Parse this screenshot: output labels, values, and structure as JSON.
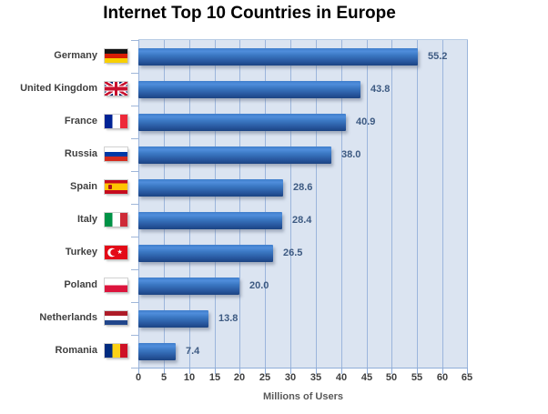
{
  "title": "Internet Top 10 Countries in Europe",
  "chart_data": {
    "type": "bar",
    "orientation": "horizontal",
    "title": "Internet Top 10 Countries in Europe",
    "xlabel": "Millions of Users",
    "xlim": [
      0,
      65
    ],
    "xticks": [
      0,
      5,
      10,
      15,
      20,
      25,
      30,
      35,
      40,
      45,
      50,
      55,
      60,
      65
    ],
    "grid": "vertical",
    "legend": "none",
    "categories": [
      "Germany",
      "United Kingdom",
      "France",
      "Russia",
      "Spain",
      "Italy",
      "Turkey",
      "Poland",
      "Netherlands",
      "Romania"
    ],
    "values": [
      55.2,
      43.8,
      40.9,
      38.0,
      28.6,
      28.4,
      26.5,
      20.0,
      13.8,
      7.4
    ],
    "value_labels": [
      "55.2",
      "43.8",
      "40.9",
      "38.0",
      "28.6",
      "28.4",
      "26.5",
      "20.0",
      "13.8",
      "7.4"
    ],
    "flag_icons": [
      "flag-germany",
      "flag-united-kingdom",
      "flag-france",
      "flag-russia",
      "flag-spain",
      "flag-italy",
      "flag-turkey",
      "flag-poland",
      "flag-netherlands",
      "flag-romania"
    ],
    "colors": {
      "bar_gradient_top": "#4f8ddb",
      "bar_gradient_bottom": "#1b4382",
      "plot_background": "#dbe4f1",
      "gridline": "#8fadd8",
      "value_label": "#3d5a82",
      "category_label": "#3f3f3f",
      "tick_label": "#3f3f3f",
      "axis_title": "#595959",
      "title": "#000000"
    }
  }
}
